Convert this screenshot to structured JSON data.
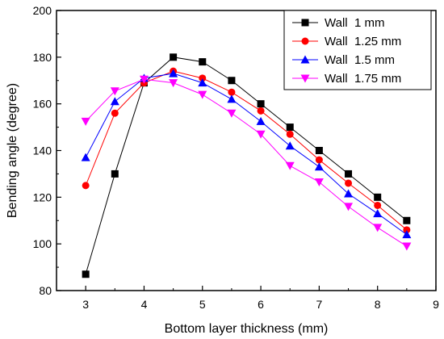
{
  "chart_data": {
    "type": "line",
    "xlabel": "Bottom layer thickness (mm)",
    "ylabel": "Bending angle (degree)",
    "xlim": [
      2.5,
      9
    ],
    "ylim": [
      80,
      200
    ],
    "x_ticks": [
      3,
      4,
      5,
      6,
      7,
      8,
      9
    ],
    "y_ticks": [
      80,
      100,
      120,
      140,
      160,
      180,
      200
    ],
    "legend_position": "top-right",
    "grid": false,
    "x": [
      3,
      3.5,
      4,
      4.5,
      5,
      5.5,
      6,
      6.5,
      7,
      7.5,
      8,
      8.5
    ],
    "series": [
      {
        "name": "Wall  1 mm",
        "color": "#000000",
        "marker": "square",
        "values": [
          87,
          130,
          169,
          180,
          178,
          170,
          160,
          150,
          140,
          130,
          120,
          110
        ]
      },
      {
        "name": "Wall  1.25 mm",
        "color": "#ff0000",
        "marker": "circle",
        "values": [
          125,
          156,
          169,
          174,
          171,
          165,
          157,
          147,
          136,
          126,
          116.5,
          106
        ]
      },
      {
        "name": "Wall  1.5 mm",
        "color": "#0000ff",
        "marker": "triangle-up",
        "values": [
          137,
          161,
          171,
          173,
          169,
          162,
          152.5,
          142,
          133,
          121.5,
          113,
          104
        ]
      },
      {
        "name": "Wall  1.75 mm",
        "color": "#ff00ff",
        "marker": "triangle-down",
        "values": [
          152.5,
          165.5,
          170.5,
          169,
          164,
          156,
          147,
          133.5,
          126.5,
          116,
          107,
          99
        ]
      }
    ]
  }
}
